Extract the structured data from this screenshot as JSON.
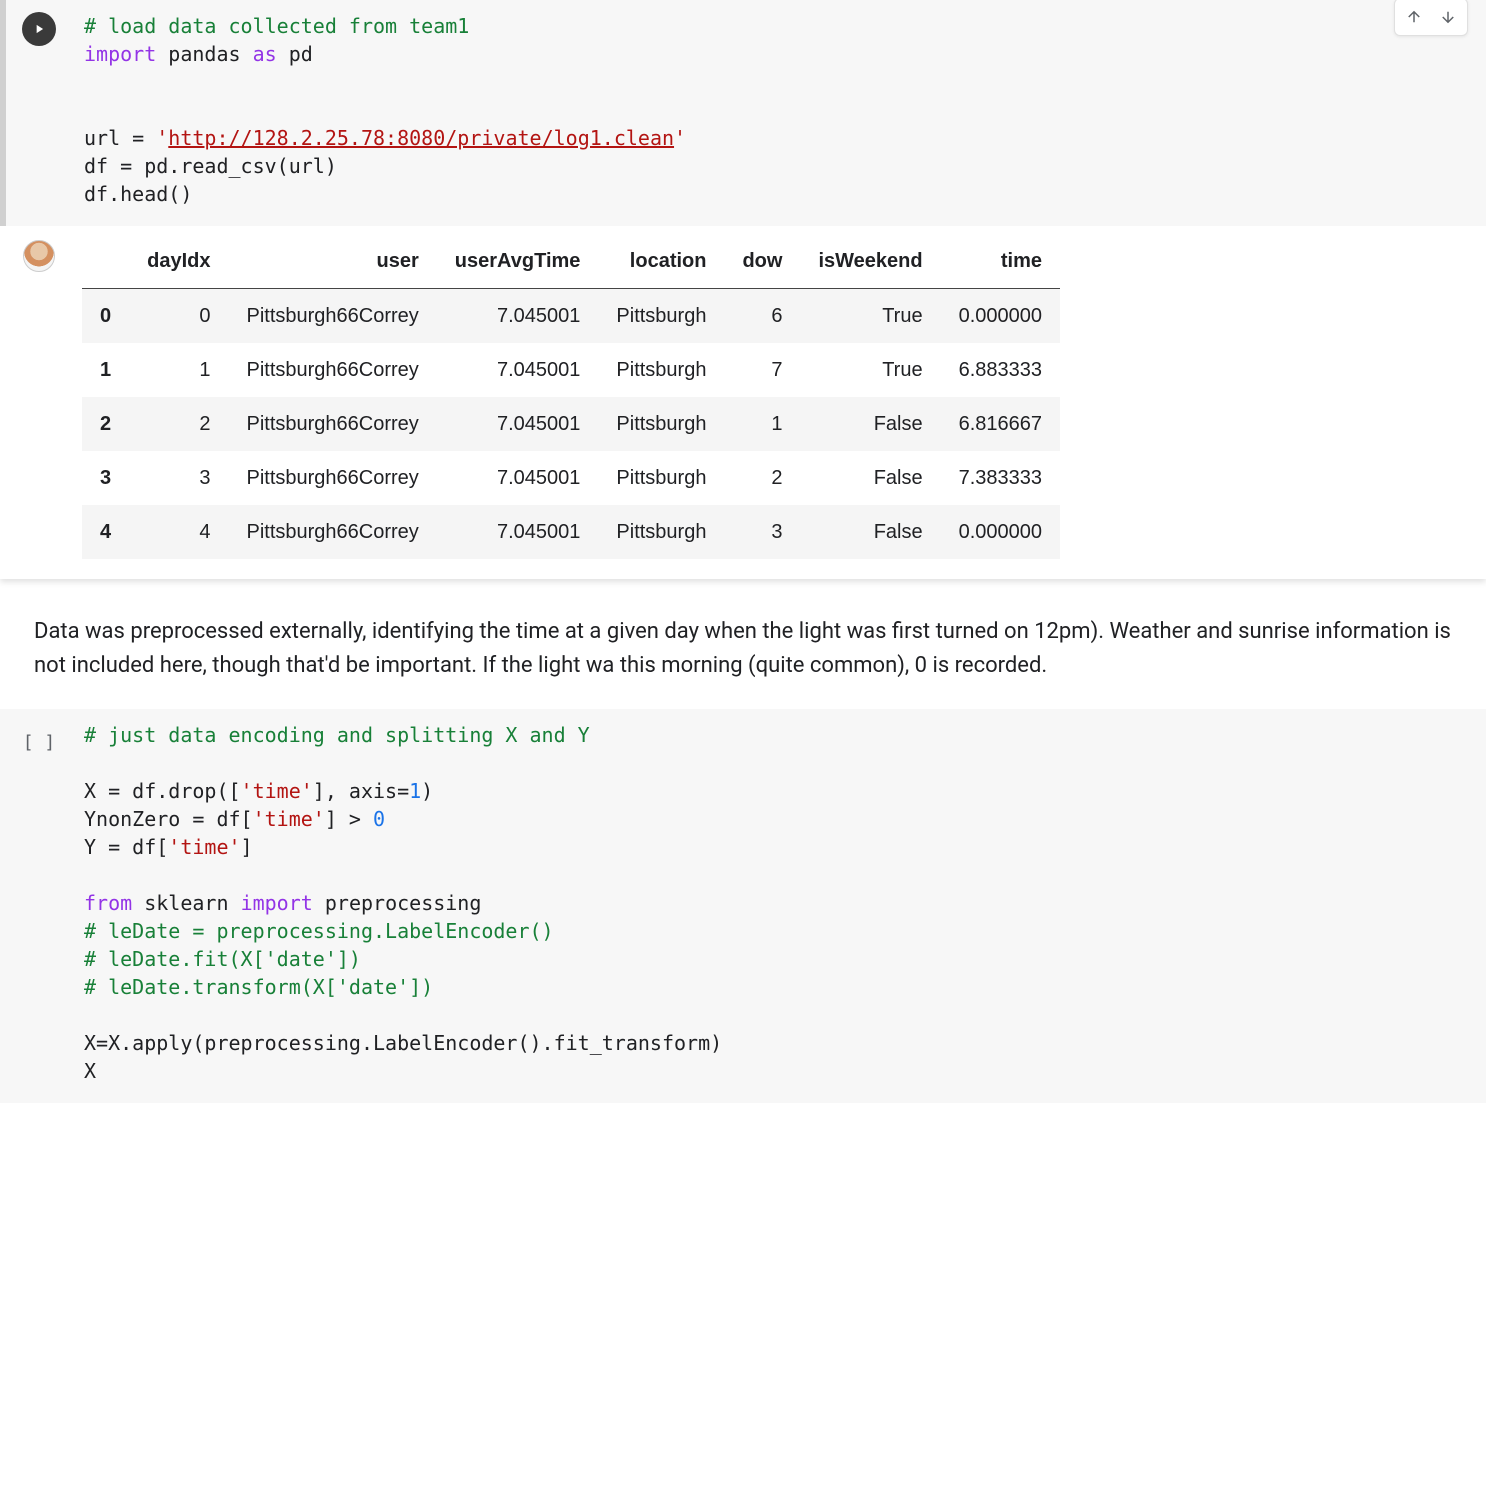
{
  "colors": {
    "code_bg": "#f7f7f7",
    "comment": "#188038",
    "keyword": "#9334e6",
    "string": "#b31412",
    "number": "#1a73e8",
    "row_stripe": "#f5f5f5",
    "text": "#202124"
  },
  "toolbar": {
    "move_up": "Move cell up",
    "move_down": "Move cell down"
  },
  "cell1": {
    "comment_line": "# load data collected from team1",
    "import_kw": "import",
    "pandas": "pandas",
    "as_kw": "as",
    "pd": "pd",
    "url_lhs": "url = ",
    "url_q1": "'",
    "url_val": "http://128.2.25.78:8080/private/log1.clean",
    "url_q2": "'",
    "df_line": "df = pd.read_csv(url)",
    "head_line": "df.head()"
  },
  "table": {
    "columns": [
      "",
      "dayIdx",
      "user",
      "userAvgTime",
      "location",
      "dow",
      "isWeekend",
      "time"
    ],
    "rows": [
      [
        "0",
        "0",
        "Pittsburgh66Correy",
        "7.045001",
        "Pittsburgh",
        "6",
        "True",
        "0.000000"
      ],
      [
        "1",
        "1",
        "Pittsburgh66Correy",
        "7.045001",
        "Pittsburgh",
        "7",
        "True",
        "6.883333"
      ],
      [
        "2",
        "2",
        "Pittsburgh66Correy",
        "7.045001",
        "Pittsburgh",
        "1",
        "False",
        "6.816667"
      ],
      [
        "3",
        "3",
        "Pittsburgh66Correy",
        "7.045001",
        "Pittsburgh",
        "2",
        "False",
        "7.383333"
      ],
      [
        "4",
        "4",
        "Pittsburgh66Correy",
        "7.045001",
        "Pittsburgh",
        "3",
        "False",
        "0.000000"
      ]
    ]
  },
  "markdown": {
    "text": "Data was preprocessed externally, identifying the time at a given day when the light was first turned on 12pm). Weather and sunrise information is not included here, though that'd be important. If the light wa this morning (quite common), 0 is recorded."
  },
  "cell2": {
    "exec": "[ ]",
    "comment_line": "# just data encoding and splitting X and Y",
    "l1a": "X = df.drop([",
    "l1s": "'time'",
    "l1b": "], axis=",
    "l1n": "1",
    "l1c": ")",
    "l2a": "YnonZero = df[",
    "l2s": "'time'",
    "l2b": "] > ",
    "l2n": "0",
    "l3a": "Y = df[",
    "l3s": "'time'",
    "l3b": "]",
    "from_kw": "from",
    "sklearn": "sklearn",
    "import_kw": "import",
    "prep": "preprocessing",
    "c1": "# leDate = preprocessing.LabelEncoder()",
    "c2": "# leDate.fit(X['date'])",
    "c3": "# leDate.transform(X['date'])",
    "l4": "X=X.apply(preprocessing.LabelEncoder().fit_transform)",
    "l5": "X"
  }
}
